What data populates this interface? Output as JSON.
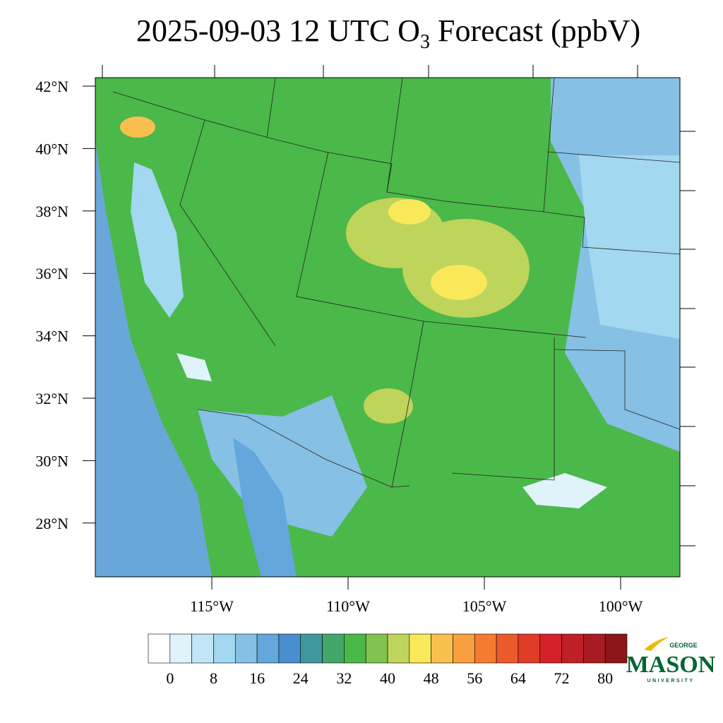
{
  "title": {
    "main": "2025-09-03 12 UTC O",
    "subscript": "3",
    "rest": " Forecast (ppbV)"
  },
  "map": {
    "lat_labels": [
      "42°N",
      "40°N",
      "38°N",
      "36°N",
      "34°N",
      "32°N",
      "30°N",
      "28°N"
    ],
    "lon_labels": [
      "115°W",
      "110°W",
      "105°W",
      "100°W"
    ]
  },
  "colorbar": {
    "colors": [
      "#ffffff",
      "#e0f3fb",
      "#c2e6f5",
      "#a2d8f0",
      "#86c0e4",
      "#63a7dc",
      "#4a8fcf",
      "#40989f",
      "#42a86a",
      "#4bb84a",
      "#80c350",
      "#bfd45a",
      "#f8e85a",
      "#f9c050",
      "#f8a040",
      "#f47c30",
      "#ec5a2b",
      "#e03c2a",
      "#d42028",
      "#bf1f26",
      "#a71b22",
      "#8b1519"
    ],
    "labels": [
      0,
      8,
      16,
      24,
      32,
      40,
      48,
      56,
      64,
      72,
      80
    ]
  },
  "logo": {
    "top": "GEORGE",
    "main": "MASON",
    "bottom": "UNIVERSITY"
  }
}
